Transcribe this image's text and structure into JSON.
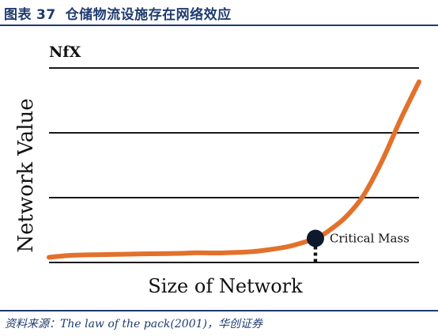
{
  "header": {
    "label": "图表",
    "number": "37",
    "title": "仓储物流设施存在网络效应"
  },
  "source": "资料来源：The law of the pack(2001)，华创证券",
  "chart_data": {
    "type": "line",
    "corner_label": "NfX",
    "xlabel": "Size of Network",
    "ylabel": "Network Value",
    "grid": true,
    "gridlines": 4,
    "line_color": "#e2712b",
    "marker_color": "#0d1a2e",
    "x": [
      0,
      5,
      10,
      15,
      20,
      25,
      30,
      35,
      40,
      45,
      50,
      55,
      60,
      65,
      70,
      72,
      75,
      80,
      85,
      90,
      95,
      100
    ],
    "y": [
      0,
      1.0,
      1.4,
      1.6,
      1.8,
      2.0,
      2.1,
      2.3,
      2.6,
      2.5,
      2.8,
      3.3,
      4.6,
      6.4,
      9.5,
      11.0,
      14.5,
      23.0,
      36.0,
      56.0,
      80.0,
      102.0
    ],
    "xlim": [
      0,
      100
    ],
    "ylim": [
      -3,
      110
    ],
    "annotation": {
      "label": "Critical Mass",
      "x": 72,
      "y": 11.0
    }
  }
}
